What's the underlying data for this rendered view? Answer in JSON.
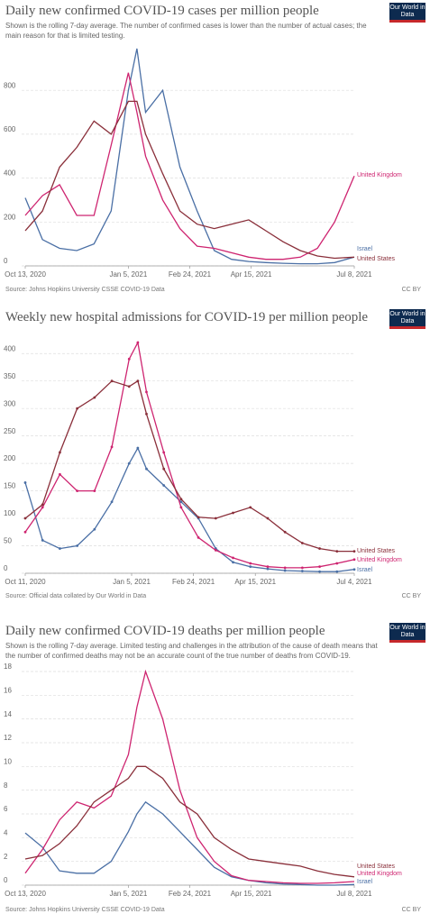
{
  "chart_data": [
    {
      "type": "line",
      "title": "Daily new confirmed COVID-19 cases per million people",
      "subtitle": "Shown is the rolling 7-day average. The number of confirmed cases is lower than the number of actual cases; the main reason for that is limited testing.",
      "source": "Source: Johns Hopkins University CSSE COVID-19 Data",
      "license": "CC BY",
      "logo": "Our World in Data",
      "x": [
        "2020-10-13",
        "2020-10-27",
        "2020-11-10",
        "2020-11-24",
        "2020-12-08",
        "2020-12-22",
        "2021-01-05",
        "2021-01-12",
        "2021-01-19",
        "2021-02-02",
        "2021-02-16",
        "2021-03-02",
        "2021-03-16",
        "2021-03-30",
        "2021-04-13",
        "2021-04-27",
        "2021-05-11",
        "2021-05-25",
        "2021-06-08",
        "2021-06-22",
        "2021-07-08"
      ],
      "xlim": [
        "2020-10-13",
        "2021-07-08"
      ],
      "xticks": [
        {
          "value": "2020-10-13",
          "label": "Oct 13, 2020"
        },
        {
          "value": "2021-01-05",
          "label": "Jan 5, 2021"
        },
        {
          "value": "2021-02-24",
          "label": "Feb 24, 2021"
        },
        {
          "value": "2021-04-15",
          "label": "Apr 15, 2021"
        },
        {
          "value": "2021-07-08",
          "label": "Jul 8, 2021"
        }
      ],
      "ylim": [
        0,
        1000
      ],
      "yticks": [
        0,
        200,
        400,
        600,
        800
      ],
      "grid": true,
      "markers": false,
      "series": [
        {
          "name": "Israel",
          "color": "#4a6fa5",
          "values": [
            310,
            120,
            80,
            70,
            100,
            250,
            800,
            990,
            700,
            800,
            450,
            250,
            70,
            30,
            20,
            15,
            12,
            10,
            10,
            15,
            40
          ]
        },
        {
          "name": "United Kingdom",
          "color": "#ce2470",
          "values": [
            230,
            320,
            370,
            230,
            230,
            550,
            880,
            700,
            500,
            300,
            170,
            90,
            80,
            60,
            40,
            30,
            30,
            40,
            80,
            200,
            410
          ]
        },
        {
          "name": "United States",
          "color": "#8a2f3a",
          "values": [
            160,
            250,
            450,
            540,
            660,
            600,
            750,
            750,
            600,
            420,
            250,
            190,
            170,
            190,
            210,
            160,
            110,
            70,
            45,
            35,
            40
          ]
        }
      ]
    },
    {
      "type": "line",
      "title": "Weekly new hospital admissions for COVID-19 per million people",
      "source": "Source: Official data collated by Our World in Data",
      "license": "CC BY",
      "logo": "Our World in Data",
      "x": [
        "2020-10-11",
        "2020-10-25",
        "2020-11-08",
        "2020-11-22",
        "2020-12-06",
        "2020-12-20",
        "2021-01-03",
        "2021-01-10",
        "2021-01-17",
        "2021-01-31",
        "2021-02-14",
        "2021-02-28",
        "2021-03-14",
        "2021-03-28",
        "2021-04-11",
        "2021-04-25",
        "2021-05-09",
        "2021-05-23",
        "2021-06-06",
        "2021-06-20",
        "2021-07-04"
      ],
      "xlim": [
        "2020-10-11",
        "2021-07-04"
      ],
      "xticks": [
        {
          "value": "2020-10-11",
          "label": "Oct 11, 2020"
        },
        {
          "value": "2021-01-05",
          "label": "Jan 5, 2021"
        },
        {
          "value": "2021-02-24",
          "label": "Feb 24, 2021"
        },
        {
          "value": "2021-04-15",
          "label": "Apr 15, 2021"
        },
        {
          "value": "2021-07-04",
          "label": "Jul 4, 2021"
        }
      ],
      "ylim": [
        0,
        425
      ],
      "yticks": [
        0,
        50,
        100,
        150,
        200,
        250,
        300,
        350,
        400
      ],
      "grid": true,
      "markers": true,
      "series": [
        {
          "name": "Israel",
          "color": "#4a6fa5",
          "values": [
            165,
            60,
            45,
            50,
            80,
            130,
            200,
            228,
            190,
            160,
            130,
            100,
            45,
            20,
            12,
            8,
            5,
            4,
            3,
            3,
            7
          ]
        },
        {
          "name": "United Kingdom",
          "color": "#ce2470",
          "values": [
            75,
            120,
            180,
            150,
            150,
            230,
            390,
            420,
            330,
            220,
            120,
            65,
            42,
            28,
            18,
            12,
            10,
            10,
            12,
            18,
            25
          ]
        },
        {
          "name": "United States",
          "color": "#8a2f3a",
          "values": [
            100,
            125,
            220,
            300,
            320,
            350,
            340,
            350,
            290,
            190,
            135,
            102,
            100,
            110,
            120,
            100,
            75,
            55,
            45,
            40,
            40
          ]
        }
      ]
    },
    {
      "type": "line",
      "title": "Daily new confirmed COVID-19 deaths per million people",
      "subtitle": "Shown is the rolling 7-day average. Limited testing and challenges in the attribution of the cause of death means that the number of confirmed deaths may not be an accurate count of the true number of deaths from COVID-19.",
      "source": "Source: Johns Hopkins University CSSE COVID-19 Data",
      "license": "CC BY",
      "logo": "Our World in Data",
      "x": [
        "2020-10-13",
        "2020-10-27",
        "2020-11-10",
        "2020-11-24",
        "2020-12-08",
        "2020-12-22",
        "2021-01-05",
        "2021-01-12",
        "2021-01-19",
        "2021-02-02",
        "2021-02-16",
        "2021-03-02",
        "2021-03-16",
        "2021-03-30",
        "2021-04-13",
        "2021-04-27",
        "2021-05-11",
        "2021-05-25",
        "2021-06-08",
        "2021-06-22",
        "2021-07-08"
      ],
      "xlim": [
        "2020-10-13",
        "2021-07-08"
      ],
      "xticks": [
        {
          "value": "2020-10-13",
          "label": "Oct 13, 2020"
        },
        {
          "value": "2021-01-05",
          "label": "Jan 5, 2021"
        },
        {
          "value": "2021-02-24",
          "label": "Feb 24, 2021"
        },
        {
          "value": "2021-04-15",
          "label": "Apr 15, 2021"
        },
        {
          "value": "2021-07-08",
          "label": "Jul 8, 2021"
        }
      ],
      "ylim": [
        0,
        18.5
      ],
      "yticks": [
        0,
        2,
        4,
        6,
        8,
        10,
        12,
        14,
        16,
        18
      ],
      "grid": true,
      "markers": false,
      "series": [
        {
          "name": "Israel",
          "color": "#4a6fa5",
          "values": [
            4.4,
            3.2,
            1.2,
            1.0,
            1.0,
            2.0,
            4.5,
            6.0,
            7.0,
            6.0,
            4.5,
            3.0,
            1.5,
            0.7,
            0.4,
            0.2,
            0.1,
            0.05,
            0,
            0,
            0.05
          ]
        },
        {
          "name": "United Kingdom",
          "color": "#ce2470",
          "values": [
            1.0,
            3.0,
            5.5,
            7.0,
            6.5,
            7.5,
            11,
            15,
            18,
            14,
            8,
            4,
            2,
            0.8,
            0.4,
            0.3,
            0.2,
            0.15,
            0.15,
            0.2,
            0.3
          ]
        },
        {
          "name": "United States",
          "color": "#8a2f3a",
          "values": [
            2.2,
            2.5,
            3.5,
            5.0,
            7.0,
            8.0,
            9.0,
            10,
            10,
            9,
            7,
            6,
            4,
            3,
            2.2,
            2.0,
            1.8,
            1.6,
            1.2,
            0.9,
            0.7
          ]
        }
      ]
    }
  ]
}
